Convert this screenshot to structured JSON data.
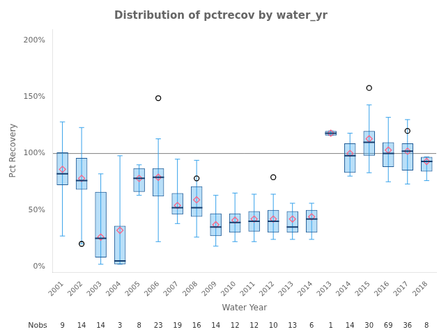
{
  "chart_data": {
    "type": "box",
    "title": "Distribution of pctrecov by water_yr",
    "xlabel": "Water Year",
    "ylabel": "Pct Recovery",
    "categories": [
      "2001",
      "2002",
      "2003",
      "2004",
      "2005",
      "2006",
      "2007",
      "2008",
      "2009",
      "2010",
      "2011",
      "2012",
      "2013",
      "2014",
      "2013",
      "2014",
      "2015",
      "2016",
      "2017",
      "2018"
    ],
    "boxes": [
      {
        "q1": 72,
        "med": 82,
        "q3": 101,
        "whislo": 27,
        "whishi": 128,
        "mean": 86,
        "fliers": []
      },
      {
        "q1": 68,
        "med": 76,
        "q3": 96,
        "whislo": 20,
        "whishi": 123,
        "mean": 78,
        "fliers": [
          20
        ]
      },
      {
        "q1": 8,
        "med": 25,
        "q3": 66,
        "whislo": 2,
        "whishi": 82,
        "mean": 26,
        "fliers": []
      },
      {
        "q1": 2,
        "med": 5,
        "q3": 36,
        "whislo": 2,
        "whishi": 98,
        "mean": 32,
        "fliers": []
      },
      {
        "q1": 66,
        "med": 78,
        "q3": 87,
        "whislo": 63,
        "whishi": 90,
        "mean": 78,
        "fliers": []
      },
      {
        "q1": 62,
        "med": 79,
        "q3": 87,
        "whislo": 22,
        "whishi": 113,
        "mean": 79,
        "fliers": [
          149
        ]
      },
      {
        "q1": 46,
        "med": 52,
        "q3": 65,
        "whislo": 38,
        "whishi": 95,
        "mean": 54,
        "fliers": []
      },
      {
        "q1": 44,
        "med": 52,
        "q3": 71,
        "whislo": 26,
        "whishi": 94,
        "mean": 59,
        "fliers": [
          78
        ]
      },
      {
        "q1": 27,
        "med": 35,
        "q3": 47,
        "whislo": 18,
        "whishi": 63,
        "mean": 37,
        "fliers": []
      },
      {
        "q1": 30,
        "med": 39,
        "q3": 47,
        "whislo": 22,
        "whishi": 65,
        "mean": 41,
        "fliers": []
      },
      {
        "q1": 31,
        "med": 40,
        "q3": 49,
        "whislo": 22,
        "whishi": 64,
        "mean": 42,
        "fliers": []
      },
      {
        "q1": 30,
        "med": 40,
        "q3": 50,
        "whislo": 24,
        "whishi": 64,
        "mean": 42,
        "fliers": [
          79
        ]
      },
      {
        "q1": 30,
        "med": 35,
        "q3": 49,
        "whislo": 24,
        "whishi": 56,
        "mean": 42,
        "fliers": []
      },
      {
        "q1": 30,
        "med": 42,
        "q3": 50,
        "whislo": 24,
        "whishi": 56,
        "mean": 44,
        "fliers": []
      },
      {
        "q1": 116,
        "med": 118,
        "q3": 120,
        "whislo": 116,
        "whishi": 120,
        "mean": 118,
        "fliers": []
      },
      {
        "q1": 83,
        "med": 98,
        "q3": 109,
        "whislo": 80,
        "whishi": 118,
        "mean": 100,
        "fliers": []
      },
      {
        "q1": 98,
        "med": 110,
        "q3": 120,
        "whislo": 83,
        "whishi": 143,
        "mean": 113,
        "fliers": [
          158
        ]
      },
      {
        "q1": 88,
        "med": 100,
        "q3": 110,
        "whislo": 75,
        "whishi": 132,
        "mean": 103,
        "fliers": []
      },
      {
        "q1": 85,
        "med": 102,
        "q3": 109,
        "whislo": 73,
        "whishi": 130,
        "mean": 102,
        "fliers": [
          120
        ]
      },
      {
        "q1": 84,
        "med": 93,
        "q3": 97,
        "whislo": 76,
        "whishi": 97,
        "mean": 93,
        "fliers": []
      }
    ],
    "nobs_label": "Nobs",
    "nobs": [
      9,
      14,
      14,
      3,
      8,
      23,
      19,
      16,
      14,
      12,
      12,
      10,
      13,
      6,
      1,
      14,
      30,
      69,
      36,
      8
    ],
    "reference_line": 100,
    "ylim": [
      -5,
      210
    ],
    "yticks": [
      {
        "value": 0,
        "label": "0%"
      },
      {
        "value": 50,
        "label": "50%"
      },
      {
        "value": 100,
        "label": "100%"
      },
      {
        "value": 150,
        "label": "150%"
      },
      {
        "value": 200,
        "label": "200%"
      }
    ],
    "grid": false
  }
}
